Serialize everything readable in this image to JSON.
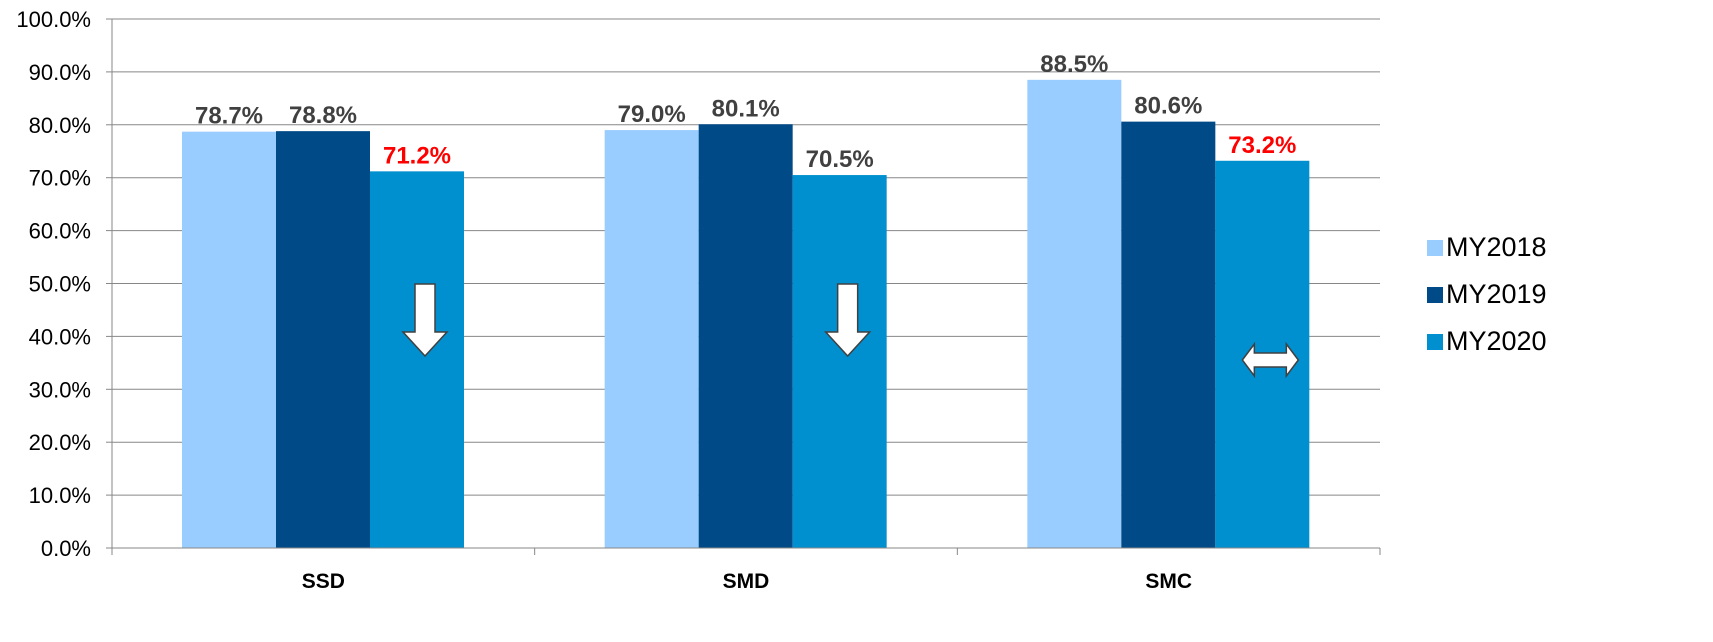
{
  "chart_data": {
    "type": "bar",
    "categories": [
      "SSD",
      "SMD",
      "SMC"
    ],
    "series": [
      {
        "name": "MY2018",
        "color": "#99CCFF",
        "values": [
          78.7,
          79.0,
          88.5
        ]
      },
      {
        "name": "MY2019",
        "color": "#004A87",
        "values": [
          78.8,
          80.1,
          80.6
        ]
      },
      {
        "name": "MY2020",
        "color": "#0090D0",
        "values": [
          71.2,
          70.5,
          73.2
        ]
      }
    ],
    "data_labels": [
      [
        "78.7%",
        "78.8%",
        "71.2%"
      ],
      [
        "79.0%",
        "80.1%",
        "70.5%"
      ],
      [
        "88.5%",
        "80.6%",
        "73.2%"
      ]
    ],
    "data_label_colors": [
      [
        "#404040",
        "#404040",
        "#FF0000"
      ],
      [
        "#404040",
        "#404040",
        "#404040"
      ],
      [
        "#404040",
        "#404040",
        "#FF0000"
      ]
    ],
    "y_ticks": [
      "0.0%",
      "10.0%",
      "20.0%",
      "30.0%",
      "40.0%",
      "50.0%",
      "60.0%",
      "70.0%",
      "80.0%",
      "90.0%",
      "100.0%"
    ],
    "ylim": [
      0,
      100
    ],
    "grid": true,
    "legend_position": "right",
    "trend_icons": [
      {
        "category": "SSD",
        "icon": "down-arrow-icon"
      },
      {
        "category": "SMD",
        "icon": "down-arrow-icon"
      },
      {
        "category": "SMC",
        "icon": "left-right-arrow-icon"
      }
    ]
  }
}
